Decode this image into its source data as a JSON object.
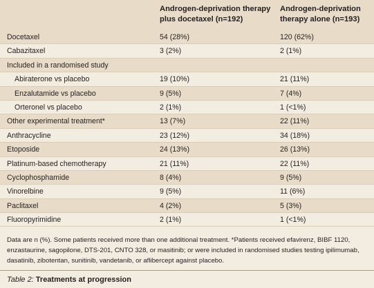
{
  "table": {
    "headers": {
      "col1": "Androgen-deprivation therapy plus docetaxel (n=192)",
      "col2": "Androgen-deprivation therapy alone (n=193)"
    },
    "rows": [
      {
        "label": "Docetaxel",
        "col1": "54 (28%)",
        "col2": "120 (62%)",
        "indent": false
      },
      {
        "label": "Cabazitaxel",
        "col1": "3 (2%)",
        "col2": "2 (1%)",
        "indent": false
      },
      {
        "label": "Included in a randomised study",
        "col1": "",
        "col2": "",
        "indent": false
      },
      {
        "label": "Abiraterone vs placebo",
        "col1": "19 (10%)",
        "col2": "21 (11%)",
        "indent": true
      },
      {
        "label": "Enzalutamide vs placebo",
        "col1": "9 (5%)",
        "col2": "7 (4%)",
        "indent": true
      },
      {
        "label": "Orteronel vs placebo",
        "col1": "2 (1%)",
        "col2": "1 (<1%)",
        "indent": true
      },
      {
        "label": "Other experimental treatment*",
        "col1": "13 (7%)",
        "col2": "22 (11%)",
        "indent": false
      },
      {
        "label": "Anthracycline",
        "col1": "23 (12%)",
        "col2": "34 (18%)",
        "indent": false
      },
      {
        "label": "Etoposide",
        "col1": "24 (13%)",
        "col2": "26 (13%)",
        "indent": false
      },
      {
        "label": "Platinum-based chemotherapy",
        "col1": "21 (11%)",
        "col2": "22 (11%)",
        "indent": false
      },
      {
        "label": "Cyclophosphamide",
        "col1": "8 (4%)",
        "col2": "9 (5%)",
        "indent": false
      },
      {
        "label": "Vinorelbine",
        "col1": "9 (5%)",
        "col2": "11 (6%)",
        "indent": false
      },
      {
        "label": "Paclitaxel",
        "col1": "4 (2%)",
        "col2": "5 (3%)",
        "indent": false
      },
      {
        "label": "Fluoropyrimidine",
        "col1": "2 (1%)",
        "col2": "1 (<1%)",
        "indent": false
      }
    ],
    "footnote": "Data are n (%). Some patients received more than one additional treatment. *Patients received efavirenz, BIBF 1120, enzastaurine, sagopilone, DTS-201, CNTO 328, or masitinib; or were included in randomised studies testing ipilimumab, dasatinib, zibotentan, sunitinib, vandetanib, or aflibercept against placebo.",
    "caption": {
      "label": "Table 2:",
      "text": " Treatments at progression"
    }
  }
}
